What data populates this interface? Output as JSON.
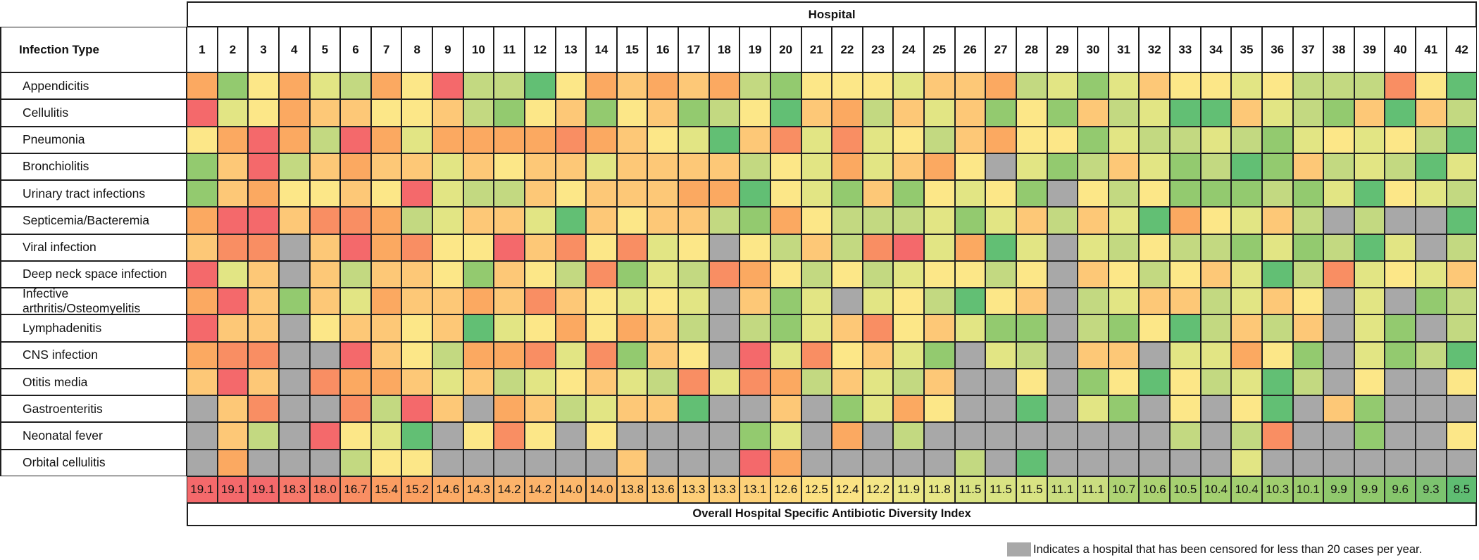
{
  "chart_data": {
    "type": "heatmap",
    "title": "Hospital",
    "row_axis_label": "Infection Type",
    "columns": [
      "1",
      "2",
      "3",
      "4",
      "5",
      "6",
      "7",
      "8",
      "9",
      "10",
      "11",
      "12",
      "13",
      "14",
      "15",
      "16",
      "17",
      "18",
      "19",
      "20",
      "21",
      "22",
      "23",
      "24",
      "25",
      "26",
      "27",
      "28",
      "29",
      "30",
      "31",
      "32",
      "33",
      "34",
      "35",
      "36",
      "37",
      "38",
      "39",
      "40",
      "41",
      "42"
    ],
    "palette": {
      "R": "#f4696b",
      "OR": "#f98e63",
      "O": "#fba961",
      "YO": "#fdc877",
      "Y": "#fce788",
      "YG": "#e2e584",
      "LG": "#c3d981",
      "G": "#93ca6f",
      "DG": "#62bf74",
      "GY": "#a8a8a8"
    },
    "censored_code": "GY",
    "rows": [
      {
        "label": "Appendicitis",
        "cells": [
          "O",
          "G",
          "Y",
          "O",
          "YG",
          "LG",
          "O",
          "Y",
          "R",
          "LG",
          "LG",
          "DG",
          "Y",
          "O",
          "YO",
          "O",
          "YO",
          "O",
          "LG",
          "G",
          "Y",
          "Y",
          "Y",
          "YG",
          "YO",
          "YO",
          "O",
          "LG",
          "YG",
          "G",
          "YG",
          "YO",
          "Y",
          "Y",
          "YG",
          "Y",
          "LG",
          "LG",
          "LG",
          "OR",
          "Y",
          "DG"
        ]
      },
      {
        "label": "Cellulitis",
        "cells": [
          "R",
          "YG",
          "Y",
          "O",
          "YO",
          "YO",
          "Y",
          "Y",
          "YO",
          "LG",
          "G",
          "Y",
          "YO",
          "G",
          "Y",
          "YO",
          "G",
          "LG",
          "Y",
          "DG",
          "YO",
          "O",
          "LG",
          "YO",
          "YG",
          "YO",
          "G",
          "Y",
          "G",
          "YO",
          "LG",
          "YG",
          "DG",
          "DG",
          "YO",
          "YG",
          "LG",
          "G",
          "YO",
          "DG",
          "YO",
          "LG"
        ]
      },
      {
        "label": "Pneumonia",
        "cells": [
          "Y",
          "O",
          "R",
          "O",
          "LG",
          "R",
          "O",
          "YG",
          "O",
          "O",
          "O",
          "O",
          "OR",
          "O",
          "YO",
          "Y",
          "YG",
          "DG",
          "YO",
          "OR",
          "YG",
          "OR",
          "YG",
          "Y",
          "LG",
          "YO",
          "O",
          "Y",
          "Y",
          "G",
          "YG",
          "LG",
          "LG",
          "YG",
          "LG",
          "G",
          "YG",
          "Y",
          "YG",
          "Y",
          "LG",
          "DG"
        ]
      },
      {
        "label": "Bronchiolitis",
        "cells": [
          "G",
          "YO",
          "R",
          "LG",
          "YO",
          "O",
          "YO",
          "YO",
          "YG",
          "YO",
          "Y",
          "YO",
          "YO",
          "YG",
          "YO",
          "YO",
          "YO",
          "YO",
          "LG",
          "Y",
          "YG",
          "O",
          "YG",
          "YO",
          "O",
          "Y",
          "GY",
          "YG",
          "G",
          "LG",
          "YO",
          "YG",
          "G",
          "LG",
          "DG",
          "G",
          "YO",
          "LG",
          "YG",
          "LG",
          "DG",
          "YG"
        ]
      },
      {
        "label": "Urinary tract infections",
        "cells": [
          "G",
          "YO",
          "O",
          "Y",
          "Y",
          "YO",
          "Y",
          "R",
          "YG",
          "LG",
          "LG",
          "YO",
          "Y",
          "YO",
          "YO",
          "YO",
          "O",
          "O",
          "DG",
          "Y",
          "YG",
          "G",
          "YO",
          "G",
          "Y",
          "YG",
          "Y",
          "G",
          "GY",
          "Y",
          "LG",
          "Y",
          "G",
          "G",
          "G",
          "LG",
          "G",
          "YG",
          "DG",
          "Y",
          "YG",
          "LG"
        ]
      },
      {
        "label": "Septicemia/Bacteremia",
        "cells": [
          "O",
          "R",
          "R",
          "YO",
          "OR",
          "OR",
          "O",
          "LG",
          "YG",
          "YO",
          "YO",
          "YG",
          "DG",
          "YO",
          "Y",
          "YO",
          "YO",
          "LG",
          "G",
          "O",
          "Y",
          "LG",
          "LG",
          "LG",
          "YG",
          "G",
          "YG",
          "YO",
          "LG",
          "YO",
          "YG",
          "DG",
          "O",
          "Y",
          "YG",
          "YO",
          "LG",
          "GY",
          "LG",
          "GY",
          "GY",
          "DG"
        ]
      },
      {
        "label": "Viral infection",
        "cells": [
          "YO",
          "OR",
          "OR",
          "GY",
          "YO",
          "R",
          "O",
          "OR",
          "Y",
          "Y",
          "R",
          "YO",
          "OR",
          "Y",
          "OR",
          "YG",
          "Y",
          "GY",
          "Y",
          "LG",
          "YO",
          "LG",
          "OR",
          "R",
          "YG",
          "O",
          "DG",
          "YG",
          "GY",
          "YG",
          "LG",
          "Y",
          "LG",
          "LG",
          "G",
          "YG",
          "G",
          "LG",
          "DG",
          "YG",
          "GY",
          "LG"
        ]
      },
      {
        "label": "Deep neck space infection",
        "cells": [
          "R",
          "YG",
          "YO",
          "GY",
          "YO",
          "LG",
          "YO",
          "YO",
          "Y",
          "G",
          "YO",
          "Y",
          "LG",
          "OR",
          "G",
          "YG",
          "LG",
          "OR",
          "O",
          "Y",
          "LG",
          "Y",
          "LG",
          "YG",
          "Y",
          "Y",
          "LG",
          "Y",
          "GY",
          "YO",
          "Y",
          "LG",
          "Y",
          "YO",
          "YG",
          "DG",
          "LG",
          "OR",
          "YG",
          "Y",
          "YG",
          "YO"
        ]
      },
      {
        "label": "Infective arthritis/Osteomyelitis",
        "cells": [
          "O",
          "R",
          "YO",
          "G",
          "YO",
          "YG",
          "O",
          "YO",
          "YO",
          "O",
          "YO",
          "OR",
          "YO",
          "Y",
          "YG",
          "Y",
          "YG",
          "GY",
          "YO",
          "G",
          "YG",
          "GY",
          "YG",
          "Y",
          "LG",
          "DG",
          "Y",
          "YO",
          "GY",
          "LG",
          "YG",
          "YO",
          "YO",
          "LG",
          "YG",
          "YO",
          "Y",
          "GY",
          "YG",
          "GY",
          "G",
          "LG"
        ]
      },
      {
        "label": "Lymphadenitis",
        "cells": [
          "R",
          "YO",
          "YO",
          "GY",
          "Y",
          "YO",
          "YO",
          "Y",
          "YO",
          "DG",
          "YG",
          "Y",
          "O",
          "Y",
          "O",
          "YO",
          "LG",
          "GY",
          "LG",
          "G",
          "YG",
          "YO",
          "OR",
          "Y",
          "YO",
          "YG",
          "G",
          "G",
          "GY",
          "LG",
          "G",
          "Y",
          "DG",
          "LG",
          "YO",
          "LG",
          "YO",
          "GY",
          "YG",
          "G",
          "GY",
          "LG"
        ]
      },
      {
        "label": "CNS infection",
        "cells": [
          "O",
          "OR",
          "OR",
          "GY",
          "GY",
          "R",
          "YO",
          "Y",
          "LG",
          "O",
          "O",
          "OR",
          "YG",
          "OR",
          "G",
          "YO",
          "Y",
          "GY",
          "R",
          "YG",
          "OR",
          "Y",
          "YO",
          "YG",
          "G",
          "GY",
          "YG",
          "LG",
          "GY",
          "YO",
          "YO",
          "GY",
          "YG",
          "YG",
          "O",
          "Y",
          "G",
          "GY",
          "YG",
          "G",
          "LG",
          "DG"
        ]
      },
      {
        "label": "Otitis media",
        "cells": [
          "YO",
          "R",
          "YO",
          "GY",
          "OR",
          "O",
          "O",
          "YO",
          "YG",
          "YO",
          "LG",
          "YG",
          "Y",
          "YO",
          "YG",
          "LG",
          "OR",
          "YG",
          "OR",
          "O",
          "LG",
          "YO",
          "YG",
          "LG",
          "YO",
          "GY",
          "GY",
          "Y",
          "GY",
          "G",
          "Y",
          "DG",
          "Y",
          "LG",
          "YG",
          "DG",
          "LG",
          "GY",
          "Y",
          "GY",
          "GY",
          "Y"
        ]
      },
      {
        "label": "Gastroenteritis",
        "cells": [
          "GY",
          "YO",
          "OR",
          "GY",
          "GY",
          "OR",
          "LG",
          "R",
          "YO",
          "GY",
          "O",
          "YO",
          "LG",
          "YG",
          "YO",
          "YO",
          "DG",
          "GY",
          "GY",
          "YO",
          "GY",
          "G",
          "YG",
          "O",
          "Y",
          "GY",
          "GY",
          "DG",
          "GY",
          "YG",
          "G",
          "GY",
          "Y",
          "GY",
          "Y",
          "DG",
          "GY",
          "YO",
          "G",
          "GY",
          "GY",
          "GY"
        ]
      },
      {
        "label": "Neonatal fever",
        "cells": [
          "GY",
          "YO",
          "LG",
          "GY",
          "R",
          "Y",
          "YG",
          "DG",
          "GY",
          "Y",
          "OR",
          "Y",
          "GY",
          "Y",
          "GY",
          "GY",
          "GY",
          "GY",
          "G",
          "YG",
          "GY",
          "O",
          "GY",
          "LG",
          "GY",
          "GY",
          "GY",
          "GY",
          "GY",
          "GY",
          "GY",
          "GY",
          "LG",
          "GY",
          "LG",
          "OR",
          "GY",
          "GY",
          "G",
          "GY",
          "GY",
          "Y"
        ]
      },
      {
        "label": "Orbital cellulitis",
        "cells": [
          "GY",
          "O",
          "GY",
          "GY",
          "GY",
          "LG",
          "Y",
          "Y",
          "GY",
          "GY",
          "GY",
          "GY",
          "GY",
          "GY",
          "YO",
          "GY",
          "GY",
          "GY",
          "R",
          "O",
          "GY",
          "GY",
          "GY",
          "GY",
          "GY",
          "LG",
          "GY",
          "DG",
          "GY",
          "GY",
          "GY",
          "GY",
          "GY",
          "GY",
          "YG",
          "GY",
          "GY",
          "GY",
          "GY",
          "GY",
          "GY",
          "GY"
        ]
      }
    ],
    "index_row": {
      "label": "Overall Hospital Specific Antibiotic Diversity Index",
      "values": [
        "19.1",
        "19.1",
        "19.1",
        "18.3",
        "18.0",
        "16.7",
        "15.4",
        "15.2",
        "14.6",
        "14.3",
        "14.2",
        "14.2",
        "14.0",
        "14.0",
        "13.8",
        "13.6",
        "13.3",
        "13.3",
        "13.1",
        "12.6",
        "12.5",
        "12.4",
        "12.2",
        "11.9",
        "11.8",
        "11.5",
        "11.5",
        "11.5",
        "11.1",
        "11.1",
        "10.7",
        "10.6",
        "10.5",
        "10.4",
        "10.4",
        "10.3",
        "10.1",
        "9.9",
        "9.9",
        "9.6",
        "9.3",
        "8.5"
      ],
      "colors": [
        "#f4696b",
        "#f4696b",
        "#f4696b",
        "#f7786a",
        "#f77e67",
        "#f98e63",
        "#fb9d62",
        "#fba061",
        "#fcab66",
        "#fcb169",
        "#fcb36a",
        "#fcb36a",
        "#fcb86c",
        "#fcb86c",
        "#fcc171",
        "#fcc673",
        "#fdce77",
        "#fdce77",
        "#fdd179",
        "#fdd97d",
        "#fce182",
        "#fbe384",
        "#f4e687",
        "#ebe787",
        "#e7e686",
        "#d9e383",
        "#d9e383",
        "#d9e383",
        "#cadd80",
        "#cadd80",
        "#aed373",
        "#abd272",
        "#a6d071",
        "#a3cf70",
        "#a3cf70",
        "#a0ce6f",
        "#9bcc6e",
        "#90c96d",
        "#90c96d",
        "#86c66c",
        "#7cc36f",
        "#5fbd72"
      ]
    },
    "legend_note": "Indicates a hospital that has been censored for less than 20 cases per year.",
    "layout": {
      "grid_on": true,
      "legend_position": "bottom-right"
    }
  }
}
